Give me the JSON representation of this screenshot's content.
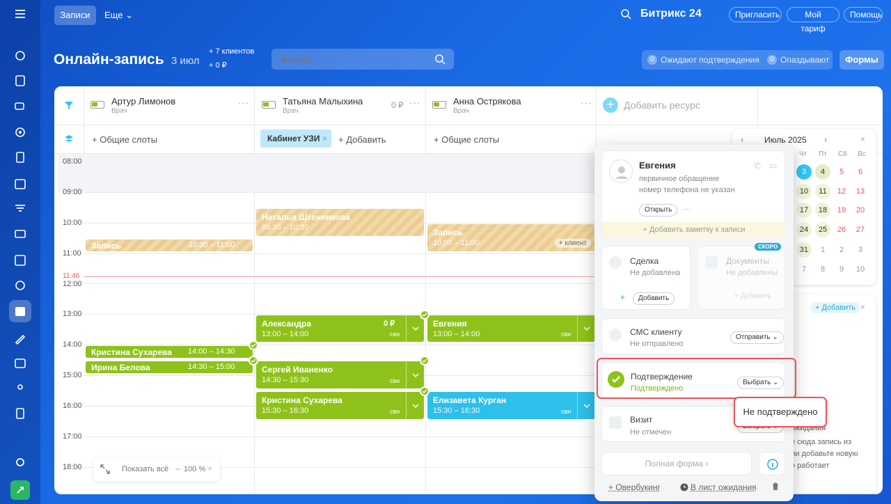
{
  "topbar": {
    "tab_active": "Записи",
    "tab_more": "Еще",
    "brand": "Битрикс 24",
    "invite": "Пригласить",
    "tariff": "Мой тариф",
    "help": "Помощь"
  },
  "header": {
    "title": "Онлайн-запись",
    "date": "3 июл",
    "clients": "+ 7 клиентов",
    "money": "+ 0 ₽",
    "filter_placeholder": "Фильтр",
    "awaiting_count": "0",
    "awaiting": "Ожидают подтверждения",
    "late_count": "0",
    "late": "Опаздывают",
    "forms": "Формы"
  },
  "resources": [
    {
      "name": "Артур Лимонов",
      "role": "Врач",
      "slots": "+ Общие слоты"
    },
    {
      "name": "Татьяна Малыхина",
      "role": "Врач",
      "price": "0 ₽",
      "cabinet": "Кабинет УЗИ",
      "add": "+ Добавить"
    },
    {
      "name": "Анна Острякова",
      "role": "Врач",
      "slots": "+ Общие слоты"
    }
  ],
  "add_resource": "Добавить ресурс",
  "times": [
    "08:00",
    "09:00",
    "10:00",
    "11:00",
    "12:00",
    "13:00",
    "14:00",
    "15:00",
    "16:00",
    "17:00",
    "18:00"
  ],
  "now_time": "11:46",
  "events": {
    "e1": {
      "name": "Запись",
      "time": "10:30 – 11:00"
    },
    "e2": {
      "name": "Наталья Штенникова",
      "time": "09:30 – 10:30"
    },
    "e3": {
      "name": "Запись",
      "time": "10:00 – 11:00",
      "tag": "+ клиент"
    },
    "e4": {
      "name": "Александра",
      "time": "13:00 – 14:00",
      "price": "0 ₽"
    },
    "e5": {
      "name": "Евгения",
      "time": "13:00 – 14:00"
    },
    "e6": {
      "name": "Кристина Сухарева",
      "time": "14:00 – 14:30"
    },
    "e7": {
      "name": "Ирина Белова",
      "time": "14:30 – 15:00"
    },
    "e8": {
      "name": "Сергей Иваненко",
      "time": "14:30 – 15:30"
    },
    "e9": {
      "name": "Кристина Сухарева",
      "time": "15:30 – 16:30"
    },
    "e10": {
      "name": "Елизавета Курган",
      "time": "15:30 – 16:30"
    },
    "svn": "свн"
  },
  "bottom": {
    "show_all": "Показать всё",
    "zoom": "100 %",
    "minus": "−",
    "plus": "+"
  },
  "calendar": {
    "month": "Июль 2025",
    "wd": [
      "Чт",
      "Пт",
      "Сб",
      "Вс"
    ],
    "rows": [
      [
        "3",
        "4",
        "5",
        "6"
      ],
      [
        "10",
        "11",
        "12",
        "13"
      ],
      [
        "17",
        "18",
        "19",
        "20"
      ],
      [
        "24",
        "25",
        "26",
        "27"
      ],
      [
        "31",
        "1",
        "2",
        "3"
      ],
      [
        "7",
        "8",
        "9",
        "10"
      ]
    ]
  },
  "behind": {
    "add": "+ Добавить",
    "l1": "е сюда запись из",
    "l2": "ли добавьте новую",
    "l3": "о работает",
    "l4": "ожидания"
  },
  "popup": {
    "client_name": "Евгения",
    "c1": "первичное обращение",
    "c2": "номер телефона не указан",
    "open": "Открыть",
    "note": "+ Добавить заметку к записи",
    "deal": "Сделка",
    "deal_status": "Не добавлена",
    "deal_add": "Добавить",
    "docs": "Документы",
    "docs_status": "Не добавлены",
    "docs_add": "Добавить",
    "soon": "СКОРО",
    "sms": "СМС клиенту",
    "sms_status": "Не отправлено",
    "sms_btn": "Отправить",
    "confirm": "Подтверждение",
    "confirm_status": "Подтверждено",
    "confirm_btn": "Выбрать",
    "visit": "Визит",
    "visit_status": "Не отмечен",
    "visit_btn": "Выбрать",
    "dropdown_option": "Не подтверждено",
    "full_form": "Полная форма",
    "overbooking": "+ Овербукинг",
    "waitlist": "В лист ожидания"
  }
}
